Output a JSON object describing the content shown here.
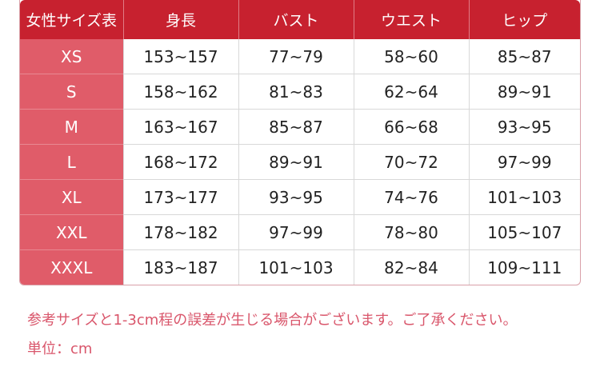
{
  "table": {
    "headers": [
      "女性サイズ表",
      "身長",
      "バスト",
      "ウエスト",
      "ヒップ"
    ],
    "rows": [
      [
        "XS",
        "153~157",
        "77~79",
        "58~60",
        "85~87"
      ],
      [
        "S",
        "158~162",
        "81~83",
        "62~64",
        "89~91"
      ],
      [
        "M",
        "163~167",
        "85~87",
        "66~68",
        "93~95"
      ],
      [
        "L",
        "168~172",
        "89~91",
        "70~72",
        "97~99"
      ],
      [
        "XL",
        "173~177",
        "93~95",
        "74~76",
        "101~103"
      ],
      [
        "XXL",
        "178~182",
        "97~99",
        "78~80",
        "105~107"
      ],
      [
        "XXXL",
        "183~187",
        "101~103",
        "82~84",
        "109~111"
      ]
    ]
  },
  "notes": {
    "disclaimer": "参考サイズと1-3cm程の誤差が生じる場合がございます。ご了承ください。",
    "unit": "単位：cm"
  },
  "colors": {
    "header": "#c7212f",
    "size_column": "#e05c69",
    "note_text": "#d9566b"
  }
}
